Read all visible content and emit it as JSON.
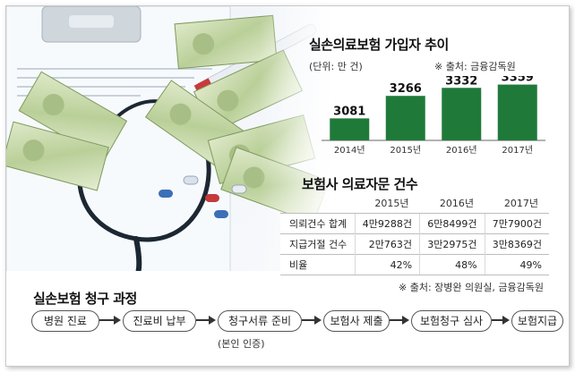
{
  "chart_data": [
    {
      "type": "bar",
      "title": "실손의료보험 가입자 추이",
      "unit": "(단위: 만 건)",
      "source": "※ 출처: 금융감독원",
      "categories": [
        "2014년",
        "2015년",
        "2016년",
        "2017년"
      ],
      "values": [
        3081,
        3266,
        3332,
        3359
      ],
      "value_labels": [
        "3081",
        "3266",
        "3332",
        "3359"
      ],
      "color": "#1f7a3a",
      "ylim": [
        2900,
        3400
      ]
    },
    {
      "type": "table",
      "title": "보험사 의료자문 건수",
      "columns": [
        "2015년",
        "2016년",
        "2017년"
      ],
      "rows": [
        {
          "label": "의뢰건수 합계",
          "values": [
            "4만9288건",
            "6만8499건",
            "7만7900건"
          ]
        },
        {
          "label": "지급거절 건수",
          "values": [
            "2만763건",
            "3만2975건",
            "3만8369건"
          ]
        },
        {
          "label": "비율",
          "values": [
            "42%",
            "48%",
            "49%"
          ]
        }
      ],
      "source": "※ 출처: 장병완 의원실, 금융감독원"
    }
  ],
  "process": {
    "title": "실손보험 청구 과정",
    "steps": [
      "병원 진료",
      "진료비 납부",
      "청구서류 준비",
      "보험사 제출",
      "보험청구 심사",
      "보험지급"
    ],
    "note": "(본인 인증)"
  },
  "colors": {
    "bar": "#1f7a3a",
    "accent": "#2a5aa0"
  },
  "icons": [
    "stethoscope-icon",
    "banknote-icon",
    "pill-icon"
  ]
}
